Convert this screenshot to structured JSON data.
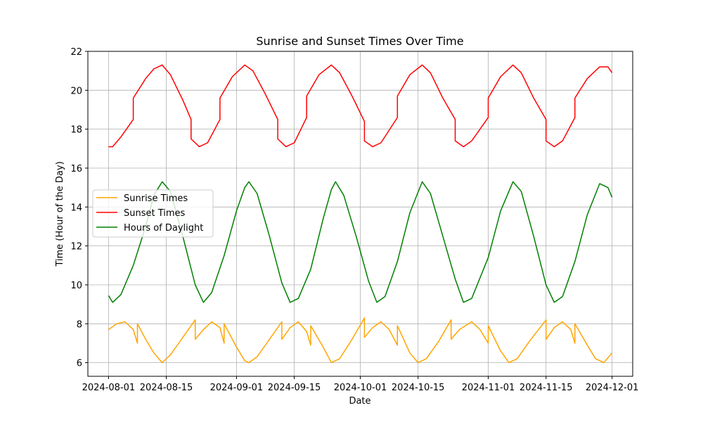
{
  "chart_data": {
    "type": "line",
    "title": "Sunrise and Sunset Times Over Time",
    "xlabel": "Date",
    "ylabel": "Time (Hour of the Day)",
    "xlim": [
      "2024-07-27",
      "2024-12-06"
    ],
    "ylim": [
      5.3,
      22
    ],
    "x_ticks": [
      "2024-08-01",
      "2024-08-15",
      "2024-09-01",
      "2024-09-15",
      "2024-10-01",
      "2024-10-15",
      "2024-11-01",
      "2024-11-15",
      "2024-12-01"
    ],
    "y_ticks": [
      6,
      8,
      10,
      12,
      14,
      16,
      18,
      20,
      22
    ],
    "grid": true,
    "legend_position": "center-left",
    "x_range": [
      "2024-08-01",
      "2024-12-01"
    ],
    "series": [
      {
        "name": "Sunrise Times",
        "color": "#ffa500",
        "points": [
          [
            "2024-08-01",
            7.7
          ],
          [
            "2024-08-03",
            8.0
          ],
          [
            "2024-08-05",
            8.1
          ],
          [
            "2024-08-07",
            7.7
          ],
          [
            "2024-08-08",
            7.0
          ],
          [
            "2024-08-08",
            8.0
          ],
          [
            "2024-08-10",
            7.2
          ],
          [
            "2024-08-12",
            6.5
          ],
          [
            "2024-08-14",
            6.0
          ],
          [
            "2024-08-16",
            6.4
          ],
          [
            "2024-08-18",
            7.0
          ],
          [
            "2024-08-20",
            7.6
          ],
          [
            "2024-08-22",
            8.2
          ],
          [
            "2024-08-22",
            7.2
          ],
          [
            "2024-08-24",
            7.7
          ],
          [
            "2024-08-26",
            8.1
          ],
          [
            "2024-08-28",
            7.8
          ],
          [
            "2024-08-29",
            7.0
          ],
          [
            "2024-08-29",
            8.0
          ],
          [
            "2024-09-01",
            6.8
          ],
          [
            "2024-09-03",
            6.1
          ],
          [
            "2024-09-04",
            6.0
          ],
          [
            "2024-09-06",
            6.3
          ],
          [
            "2024-09-09",
            7.2
          ],
          [
            "2024-09-12",
            8.1
          ],
          [
            "2024-09-12",
            7.2
          ],
          [
            "2024-09-14",
            7.8
          ],
          [
            "2024-09-16",
            8.1
          ],
          [
            "2024-09-18",
            7.6
          ],
          [
            "2024-09-19",
            6.9
          ],
          [
            "2024-09-19",
            7.9
          ],
          [
            "2024-09-22",
            6.8
          ],
          [
            "2024-09-24",
            6.0
          ],
          [
            "2024-09-26",
            6.2
          ],
          [
            "2024-09-29",
            7.2
          ],
          [
            "2024-10-02",
            8.3
          ],
          [
            "2024-10-02",
            7.3
          ],
          [
            "2024-10-04",
            7.8
          ],
          [
            "2024-10-06",
            8.1
          ],
          [
            "2024-10-08",
            7.7
          ],
          [
            "2024-10-10",
            6.9
          ],
          [
            "2024-10-10",
            7.9
          ],
          [
            "2024-10-13",
            6.5
          ],
          [
            "2024-10-15",
            6.0
          ],
          [
            "2024-10-17",
            6.2
          ],
          [
            "2024-10-20",
            7.1
          ],
          [
            "2024-10-23",
            8.2
          ],
          [
            "2024-10-23",
            7.2
          ],
          [
            "2024-10-25",
            7.7
          ],
          [
            "2024-10-28",
            8.1
          ],
          [
            "2024-10-30",
            7.7
          ],
          [
            "2024-11-01",
            7.0
          ],
          [
            "2024-11-01",
            7.9
          ],
          [
            "2024-11-04",
            6.6
          ],
          [
            "2024-11-06",
            6.0
          ],
          [
            "2024-11-08",
            6.2
          ],
          [
            "2024-11-11",
            7.1
          ],
          [
            "2024-11-15",
            8.2
          ],
          [
            "2024-11-15",
            7.2
          ],
          [
            "2024-11-17",
            7.8
          ],
          [
            "2024-11-19",
            8.1
          ],
          [
            "2024-11-21",
            7.7
          ],
          [
            "2024-11-22",
            7.0
          ],
          [
            "2024-11-22",
            8.0
          ],
          [
            "2024-11-25",
            6.9
          ],
          [
            "2024-11-27",
            6.2
          ],
          [
            "2024-11-29",
            6.0
          ],
          [
            "2024-12-01",
            6.5
          ]
        ]
      },
      {
        "name": "Sunset Times",
        "color": "#ff0000",
        "points": [
          [
            "2024-08-01",
            17.1
          ],
          [
            "2024-08-02",
            17.1
          ],
          [
            "2024-08-04",
            17.6
          ],
          [
            "2024-08-07",
            18.5
          ],
          [
            "2024-08-07",
            19.6
          ],
          [
            "2024-08-10",
            20.6
          ],
          [
            "2024-08-12",
            21.1
          ],
          [
            "2024-08-14",
            21.3
          ],
          [
            "2024-08-16",
            20.8
          ],
          [
            "2024-08-19",
            19.5
          ],
          [
            "2024-08-21",
            18.5
          ],
          [
            "2024-08-21",
            17.5
          ],
          [
            "2024-08-23",
            17.1
          ],
          [
            "2024-08-25",
            17.3
          ],
          [
            "2024-08-28",
            18.5
          ],
          [
            "2024-08-28",
            19.6
          ],
          [
            "2024-08-31",
            20.7
          ],
          [
            "2024-09-03",
            21.3
          ],
          [
            "2024-09-05",
            21.0
          ],
          [
            "2024-09-08",
            19.8
          ],
          [
            "2024-09-11",
            18.5
          ],
          [
            "2024-09-11",
            17.5
          ],
          [
            "2024-09-13",
            17.1
          ],
          [
            "2024-09-15",
            17.3
          ],
          [
            "2024-09-18",
            18.6
          ],
          [
            "2024-09-18",
            19.7
          ],
          [
            "2024-09-21",
            20.8
          ],
          [
            "2024-09-24",
            21.3
          ],
          [
            "2024-09-26",
            20.9
          ],
          [
            "2024-09-29",
            19.7
          ],
          [
            "2024-10-02",
            18.4
          ],
          [
            "2024-10-02",
            17.4
          ],
          [
            "2024-10-04",
            17.1
          ],
          [
            "2024-10-06",
            17.3
          ],
          [
            "2024-10-10",
            18.6
          ],
          [
            "2024-10-10",
            19.7
          ],
          [
            "2024-10-13",
            20.8
          ],
          [
            "2024-10-16",
            21.3
          ],
          [
            "2024-10-18",
            20.9
          ],
          [
            "2024-10-21",
            19.6
          ],
          [
            "2024-10-24",
            18.5
          ],
          [
            "2024-10-24",
            17.4
          ],
          [
            "2024-10-26",
            17.1
          ],
          [
            "2024-10-28",
            17.4
          ],
          [
            "2024-11-01",
            18.6
          ],
          [
            "2024-11-01",
            19.6
          ],
          [
            "2024-11-04",
            20.7
          ],
          [
            "2024-11-07",
            21.3
          ],
          [
            "2024-11-09",
            20.9
          ],
          [
            "2024-11-12",
            19.6
          ],
          [
            "2024-11-15",
            18.5
          ],
          [
            "2024-11-15",
            17.4
          ],
          [
            "2024-11-17",
            17.1
          ],
          [
            "2024-11-19",
            17.4
          ],
          [
            "2024-11-22",
            18.6
          ],
          [
            "2024-11-22",
            19.6
          ],
          [
            "2024-11-25",
            20.6
          ],
          [
            "2024-11-28",
            21.2
          ],
          [
            "2024-11-30",
            21.2
          ],
          [
            "2024-12-01",
            20.9
          ]
        ]
      },
      {
        "name": "Hours of Daylight",
        "color": "#008000",
        "points": [
          [
            "2024-08-01",
            9.45
          ],
          [
            "2024-08-02",
            9.1
          ],
          [
            "2024-08-04",
            9.5
          ],
          [
            "2024-08-07",
            11.0
          ],
          [
            "2024-08-10",
            13.0
          ],
          [
            "2024-08-12",
            14.6
          ],
          [
            "2024-08-14",
            15.3
          ],
          [
            "2024-08-16",
            14.8
          ],
          [
            "2024-08-19",
            12.5
          ],
          [
            "2024-08-22",
            10.0
          ],
          [
            "2024-08-24",
            9.1
          ],
          [
            "2024-08-26",
            9.6
          ],
          [
            "2024-08-29",
            11.5
          ],
          [
            "2024-09-01",
            13.8
          ],
          [
            "2024-09-03",
            15.0
          ],
          [
            "2024-09-04",
            15.3
          ],
          [
            "2024-09-06",
            14.7
          ],
          [
            "2024-09-09",
            12.5
          ],
          [
            "2024-09-12",
            10.1
          ],
          [
            "2024-09-14",
            9.1
          ],
          [
            "2024-09-16",
            9.3
          ],
          [
            "2024-09-19",
            10.8
          ],
          [
            "2024-09-22",
            13.4
          ],
          [
            "2024-09-24",
            14.9
          ],
          [
            "2024-09-25",
            15.3
          ],
          [
            "2024-09-27",
            14.6
          ],
          [
            "2024-09-30",
            12.5
          ],
          [
            "2024-10-03",
            10.2
          ],
          [
            "2024-10-05",
            9.1
          ],
          [
            "2024-10-07",
            9.4
          ],
          [
            "2024-10-10",
            11.2
          ],
          [
            "2024-10-13",
            13.7
          ],
          [
            "2024-10-16",
            15.3
          ],
          [
            "2024-10-18",
            14.7
          ],
          [
            "2024-10-21",
            12.5
          ],
          [
            "2024-10-24",
            10.3
          ],
          [
            "2024-10-26",
            9.1
          ],
          [
            "2024-10-28",
            9.3
          ],
          [
            "2024-11-01",
            11.4
          ],
          [
            "2024-11-04",
            13.8
          ],
          [
            "2024-11-07",
            15.3
          ],
          [
            "2024-11-09",
            14.8
          ],
          [
            "2024-11-12",
            12.5
          ],
          [
            "2024-11-15",
            10.0
          ],
          [
            "2024-11-17",
            9.1
          ],
          [
            "2024-11-19",
            9.4
          ],
          [
            "2024-11-22",
            11.2
          ],
          [
            "2024-11-25",
            13.6
          ],
          [
            "2024-11-28",
            15.2
          ],
          [
            "2024-11-30",
            15.0
          ],
          [
            "2024-12-01",
            14.5
          ]
        ]
      }
    ]
  }
}
